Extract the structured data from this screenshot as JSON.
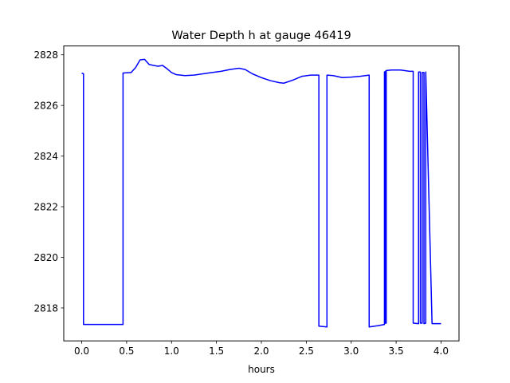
{
  "chart_data": {
    "type": "line",
    "title": "Water Depth h at gauge 46419",
    "xlabel": "hours",
    "ylabel": "",
    "xlim": [
      -0.2,
      4.2
    ],
    "ylim": [
      2816.7,
      2828.35
    ],
    "xticks": [
      0.0,
      0.5,
      1.0,
      1.5,
      2.0,
      2.5,
      3.0,
      3.5,
      4.0
    ],
    "xtick_labels": [
      "0.0",
      "0.5",
      "1.0",
      "1.5",
      "2.0",
      "2.5",
      "3.0",
      "3.5",
      "4.0"
    ],
    "yticks": [
      2818,
      2820,
      2822,
      2824,
      2826,
      2828
    ],
    "ytick_labels": [
      "2818",
      "2820",
      "2822",
      "2824",
      "2826",
      "2828"
    ],
    "grid": false,
    "series": [
      {
        "color": "#0000ff",
        "x": [
          0.0,
          0.02,
          0.02,
          0.46,
          0.46,
          0.55,
          0.6,
          0.65,
          0.7,
          0.75,
          0.8,
          0.85,
          0.9,
          0.95,
          1.0,
          1.05,
          1.1,
          1.15,
          1.25,
          1.35,
          1.45,
          1.55,
          1.65,
          1.75,
          1.82,
          1.9,
          2.0,
          2.1,
          2.2,
          2.25,
          2.35,
          2.45,
          2.55,
          2.64,
          2.64,
          2.73,
          2.73,
          2.8,
          2.9,
          3.0,
          3.1,
          3.2,
          3.2,
          3.3,
          3.37,
          3.37,
          3.38,
          3.38,
          3.39,
          3.39,
          3.45,
          3.55,
          3.65,
          3.69,
          3.69,
          3.75,
          3.75,
          3.77,
          3.77,
          3.79,
          3.79,
          3.81,
          3.81,
          3.83,
          3.83,
          3.9,
          4.0
        ],
        "y": [
          2827.28,
          2827.25,
          2817.35,
          2817.35,
          2827.28,
          2827.3,
          2827.5,
          2827.8,
          2827.82,
          2827.62,
          2827.58,
          2827.55,
          2827.58,
          2827.45,
          2827.3,
          2827.22,
          2827.2,
          2827.18,
          2827.2,
          2827.25,
          2827.3,
          2827.35,
          2827.42,
          2827.47,
          2827.42,
          2827.25,
          2827.1,
          2826.98,
          2826.9,
          2826.88,
          2827.0,
          2827.15,
          2827.2,
          2827.2,
          2817.28,
          2817.25,
          2827.2,
          2827.18,
          2827.1,
          2827.12,
          2827.15,
          2827.2,
          2817.25,
          2817.3,
          2817.35,
          2827.32,
          2827.35,
          2817.4,
          2817.4,
          2827.38,
          2827.4,
          2827.4,
          2827.35,
          2827.35,
          2817.4,
          2817.38,
          2827.32,
          2827.32,
          2817.4,
          2817.4,
          2827.3,
          2827.3,
          2817.38,
          2817.4,
          2827.32,
          2817.38,
          2817.38
        ]
      }
    ]
  }
}
